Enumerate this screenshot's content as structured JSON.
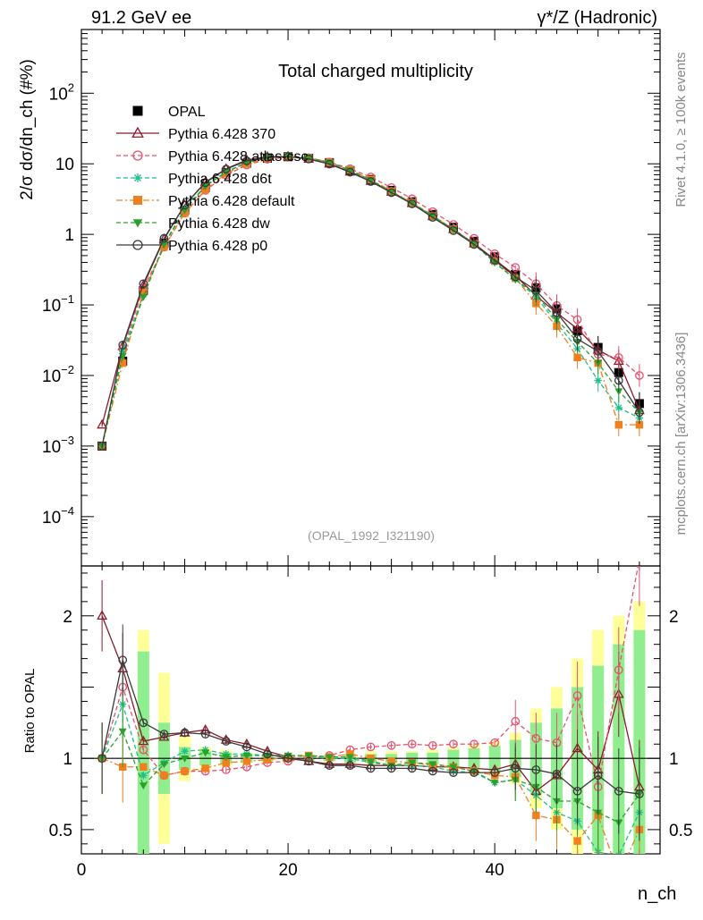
{
  "header": {
    "left": "91.2 GeV ee",
    "right": "γ*/Z (Hadronic)"
  },
  "side_labels": {
    "rivet": "Rivet 4.1.0, ≥ 100k events",
    "mcplots": "mcplots.cern.ch [arXiv:1306.3436]"
  },
  "colors": {
    "OPAL": "#000000",
    "p370": "#8b1a2b",
    "atlas": "#e8506e",
    "d6t": "#1fbf8a",
    "default": "#ef7f1f",
    "dw": "#2ca02c",
    "p0": "#3a3a3a",
    "band_yellow": "#ffff99",
    "band_green": "#90ee90"
  },
  "chart_data": [
    {
      "type": "line",
      "panel": "main",
      "title": "Total charged multiplicity",
      "ylabel": "2/σ  dσ/dn_ch (#%)",
      "yscale": "log",
      "ylim": [
        2e-05,
        800
      ],
      "xlim": [
        0,
        56
      ],
      "yticks": [
        {
          "value": 0.0001,
          "base": "10",
          "exp": "−4"
        },
        {
          "value": 0.001,
          "base": "10",
          "exp": "−3"
        },
        {
          "value": 0.01,
          "base": "10",
          "exp": "−2"
        },
        {
          "value": 0.1,
          "base": "10",
          "exp": "−1"
        },
        {
          "value": 1,
          "base": "1",
          "exp": ""
        },
        {
          "value": 10,
          "base": "10",
          "exp": ""
        },
        {
          "value": 100,
          "base": "10",
          "exp": "2"
        }
      ],
      "watermark": "(OPAL_1992_I321190)",
      "x": [
        2,
        4,
        6,
        8,
        10,
        12,
        14,
        16,
        18,
        20,
        22,
        24,
        26,
        28,
        30,
        32,
        34,
        36,
        38,
        40,
        42,
        44,
        46,
        48,
        50,
        52,
        54
      ],
      "series": [
        {
          "key": "OPAL",
          "name": "OPAL",
          "values": [
            0.001,
            0.016,
            0.16,
            0.75,
            2.2,
            4.6,
            7.5,
            10.2,
            12.0,
            12.6,
            12.0,
            10.4,
            8.0,
            6.0,
            4.2,
            2.9,
            1.92,
            1.26,
            0.8,
            0.48,
            0.27,
            0.175,
            0.088,
            0.043,
            0.025,
            0.011,
            0.004
          ]
        },
        {
          "key": "p370",
          "name": "Pythia 6.428 370",
          "values": [
            0.002,
            0.026,
            0.19,
            0.86,
            2.6,
            5.5,
            8.5,
            11.3,
            12.6,
            12.7,
            11.8,
            10.0,
            7.7,
            5.7,
            4.0,
            2.75,
            1.8,
            1.18,
            0.74,
            0.44,
            0.26,
            0.135,
            0.077,
            0.046,
            0.023,
            0.016,
            0.0032
          ]
        },
        {
          "key": "atlas",
          "name": "Pythia 6.428 atlas-csc",
          "values": [
            0.001,
            0.024,
            0.17,
            0.66,
            2.0,
            4.2,
            6.9,
            9.6,
            11.6,
            12.4,
            12.0,
            10.6,
            8.5,
            6.5,
            4.6,
            3.2,
            2.1,
            1.38,
            0.88,
            0.53,
            0.34,
            0.2,
            0.098,
            0.062,
            0.02,
            0.018,
            0.01
          ]
        },
        {
          "key": "d6t",
          "name": "Pythia 6.428 d6t",
          "values": [
            0.001,
            0.022,
            0.14,
            0.73,
            2.3,
            4.9,
            7.7,
            10.5,
            12.2,
            12.8,
            12.1,
            10.4,
            8.0,
            5.8,
            4.0,
            2.75,
            1.8,
            1.15,
            0.72,
            0.4,
            0.23,
            0.13,
            0.055,
            0.024,
            0.0085,
            0.0035,
            0.0025
          ]
        },
        {
          "key": "default",
          "name": "Pythia 6.428 default",
          "values": [
            0.001,
            0.015,
            0.15,
            0.66,
            2.0,
            4.3,
            7.3,
            10.0,
            11.9,
            12.7,
            12.2,
            10.5,
            8.2,
            6.0,
            4.1,
            2.8,
            1.82,
            1.18,
            0.73,
            0.42,
            0.24,
            0.105,
            0.05,
            0.018,
            0.015,
            0.002,
            0.002
          ]
        },
        {
          "key": "dw",
          "name": "Pythia 6.428 dw",
          "values": [
            0.001,
            0.019,
            0.13,
            0.72,
            2.2,
            4.8,
            7.6,
            10.4,
            12.2,
            12.8,
            12.2,
            10.5,
            8.1,
            5.9,
            4.0,
            2.8,
            1.84,
            1.18,
            0.73,
            0.4,
            0.23,
            0.14,
            0.062,
            0.03,
            0.015,
            0.006,
            0.003
          ]
        },
        {
          "key": "p0",
          "name": "Pythia 6.428 p0",
          "values": [
            0.001,
            0.027,
            0.2,
            0.88,
            2.6,
            5.4,
            8.4,
            11.0,
            12.4,
            12.6,
            11.7,
            9.9,
            7.6,
            5.6,
            3.9,
            2.7,
            1.74,
            1.13,
            0.72,
            0.43,
            0.25,
            0.16,
            0.078,
            0.033,
            0.022,
            0.0085,
            0.003
          ]
        }
      ]
    },
    {
      "type": "line",
      "panel": "ratio",
      "ylabel": "Ratio to OPAL",
      "ylim": [
        0.33,
        2.35
      ],
      "xlim": [
        0,
        56
      ],
      "xlabel": "n_ch",
      "xticks": [
        0,
        20,
        40
      ],
      "yticks": [
        0.5,
        1,
        2
      ],
      "x": [
        2,
        4,
        6,
        8,
        10,
        12,
        14,
        16,
        18,
        20,
        22,
        24,
        26,
        28,
        30,
        32,
        34,
        36,
        38,
        40,
        42,
        44,
        46,
        48,
        50,
        52,
        54
      ],
      "band_yellow": [
        0.0,
        0.0,
        0.9,
        0.6,
        0.16,
        0.08,
        0.06,
        0.04,
        0.03,
        0.03,
        0.03,
        0.03,
        0.04,
        0.05,
        0.05,
        0.05,
        0.06,
        0.08,
        0.1,
        0.12,
        0.18,
        0.35,
        0.5,
        0.7,
        0.9,
        1.0,
        1.1
      ],
      "band_green": [
        0.0,
        0.0,
        0.75,
        0.25,
        0.08,
        0.05,
        0.04,
        0.03,
        0.02,
        0.02,
        0.02,
        0.02,
        0.03,
        0.03,
        0.03,
        0.04,
        0.04,
        0.06,
        0.07,
        0.09,
        0.13,
        0.25,
        0.35,
        0.5,
        0.65,
        0.8,
        0.9
      ],
      "series": [
        {
          "key": "p370",
          "values": [
            2.0,
            1.63,
            1.12,
            1.15,
            1.18,
            1.2,
            1.13,
            1.1,
            1.05,
            1.01,
            0.98,
            0.96,
            0.96,
            0.95,
            0.95,
            0.95,
            0.94,
            0.94,
            0.93,
            0.92,
            0.96,
            0.77,
            0.88,
            1.07,
            0.92,
            1.45,
            0.8
          ]
        },
        {
          "key": "atlas",
          "values": [
            1.0,
            1.5,
            1.06,
            0.88,
            0.91,
            0.91,
            0.92,
            0.94,
            0.97,
            0.98,
            1.0,
            1.02,
            1.06,
            1.08,
            1.09,
            1.1,
            1.09,
            1.1,
            1.1,
            1.11,
            1.26,
            1.14,
            1.11,
            1.44,
            0.8,
            1.62,
            2.4
          ]
        },
        {
          "key": "d6t",
          "values": [
            1.0,
            1.38,
            0.88,
            0.97,
            1.05,
            1.06,
            1.03,
            1.03,
            1.02,
            1.02,
            1.01,
            1.0,
            1.0,
            0.97,
            0.95,
            0.95,
            0.94,
            0.91,
            0.9,
            0.83,
            0.85,
            0.74,
            0.62,
            0.56,
            0.34,
            0.32,
            0.62
          ]
        },
        {
          "key": "default",
          "values": [
            1.0,
            0.94,
            0.94,
            0.88,
            0.91,
            0.93,
            0.97,
            0.98,
            0.99,
            1.01,
            1.02,
            1.01,
            1.03,
            1.0,
            0.98,
            0.97,
            0.95,
            0.94,
            0.91,
            0.88,
            0.87,
            0.6,
            0.57,
            0.42,
            0.6,
            0.18,
            0.5
          ]
        },
        {
          "key": "dw",
          "values": [
            1.0,
            1.19,
            0.81,
            0.96,
            1.0,
            1.04,
            1.01,
            1.02,
            1.02,
            1.02,
            1.02,
            1.01,
            1.01,
            0.98,
            0.95,
            0.97,
            0.96,
            0.94,
            0.91,
            0.83,
            0.85,
            0.8,
            0.7,
            0.7,
            0.62,
            0.55,
            0.75
          ]
        },
        {
          "key": "p0",
          "values": [
            1.0,
            1.69,
            1.25,
            1.17,
            1.18,
            1.17,
            1.12,
            1.08,
            1.03,
            1.0,
            0.98,
            0.95,
            0.95,
            0.93,
            0.93,
            0.93,
            0.91,
            0.9,
            0.9,
            0.9,
            0.93,
            0.92,
            0.89,
            0.77,
            0.88,
            0.77,
            0.75
          ]
        }
      ]
    }
  ]
}
